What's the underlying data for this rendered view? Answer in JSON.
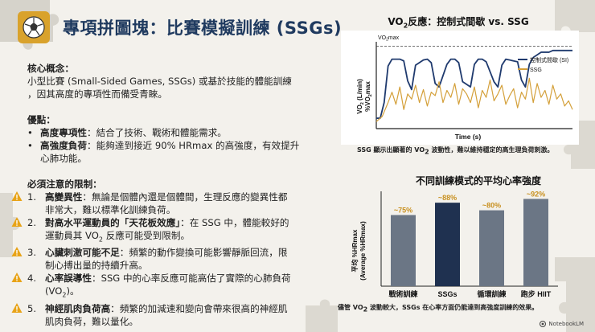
{
  "title": "專項拼圖塊：比賽模擬訓練 (SSGs)",
  "core": {
    "heading": "核心概念：",
    "line1": "小型比賽 (Small-Sided Games, SSGs) 或基於技能的體能訓練",
    "line2": "，因其高度的專項性而備受青睞。"
  },
  "advantages": {
    "heading": "優點：",
    "items": [
      {
        "bold": "高度專項性",
        "text": "：結合了技術、戰術和體能需求。",
        "text2": ""
      },
      {
        "bold": "高強度負荷",
        "text": "：能夠達到接近 90% HRmax 的高強度，有效提升",
        "text2": "心肺功能。"
      }
    ]
  },
  "limits": {
    "heading": "必須注意的限制：",
    "items": [
      {
        "num": "1.",
        "bold": "高變異性",
        "text": "：無論是個體內還是個體間，生理反應的變異性都",
        "text2": "非常大，難以標準化訓練負荷。"
      },
      {
        "num": "2.",
        "bold": "對高水平運動員的「天花板效應」",
        "text": "：在 SSG 中，體能較好的",
        "text2a": "運動員其 VO",
        "text2sub": "2",
        "text2b": " 反應可能受到限制。"
      },
      {
        "num": "3.",
        "bold": "心臟刺激可能不足",
        "text": "：頻繁的動作變換可能影響靜脈回流，限",
        "text2": "制心搏出量的持續升高。"
      },
      {
        "num": "4.",
        "bold": "心率誤導性",
        "text": "：SSG 中的心率反應可能高估了實際的心肺負荷",
        "text2a": "(VO",
        "text2sub": "2",
        "text2b": ")。"
      },
      {
        "num": "5.",
        "bold": "神經肌肉負荷高",
        "text": "：頻繁的加減速和變向會帶來很高的神經肌",
        "text2": "肌肉負荷，難以量化。"
      }
    ]
  },
  "chart_data": [
    {
      "type": "line",
      "title_pre": "VO",
      "title_sub": "2",
      "title_post": "反應：控制式間歇 vs. SSG",
      "xlabel": "Time (s)",
      "ylabel": "VO2 (L/min) %VO2max",
      "ylabel_line1_pre": "VO",
      "ylabel_line1_sub": "2",
      "ylabel_line1_post": " (L/min)",
      "ylabel_line2_pre": "%VO",
      "ylabel_line2_sub": "2",
      "ylabel_line2_post": "max",
      "ref_label_pre": "VO",
      "ref_label_sub": "2",
      "ref_label_post": "max",
      "ylim": [
        0,
        100
      ],
      "ref_line": 95,
      "grid": false,
      "legend": "top-right",
      "series": [
        {
          "name": "控制式間歇 (SI)",
          "color": "#1f3a6e",
          "x": [
            0,
            2,
            4,
            6,
            8,
            12,
            14,
            16,
            18,
            20,
            24,
            26,
            28,
            30,
            32,
            36,
            38,
            40,
            42,
            44,
            48,
            50,
            52,
            54,
            56,
            60,
            62,
            64,
            66,
            68,
            72,
            74,
            76,
            78,
            80,
            84,
            86,
            88,
            90,
            92,
            96,
            100
          ],
          "y": [
            12,
            12,
            30,
            72,
            80,
            80,
            78,
            55,
            45,
            73,
            79,
            80,
            76,
            52,
            48,
            74,
            80,
            80,
            76,
            54,
            48,
            74,
            80,
            80,
            77,
            54,
            48,
            73,
            80,
            79,
            77,
            56,
            48,
            74,
            82,
            88,
            88,
            88,
            90,
            90,
            90,
            90
          ]
        },
        {
          "name": "SSG",
          "color": "#d4a03a",
          "x": [
            0,
            3,
            6,
            8,
            10,
            12,
            14,
            16,
            18,
            20,
            22,
            24,
            26,
            28,
            30,
            32,
            34,
            36,
            38,
            40,
            42,
            44,
            46,
            48,
            50,
            52,
            54,
            56,
            58,
            60,
            62,
            64,
            66,
            68,
            70,
            72,
            74,
            76,
            78,
            80,
            82,
            84,
            86,
            88,
            90,
            92,
            94,
            96,
            98,
            100
          ],
          "y": [
            8,
            14,
            30,
            42,
            28,
            48,
            22,
            40,
            34,
            50,
            30,
            45,
            26,
            42,
            38,
            54,
            30,
            44,
            36,
            52,
            28,
            46,
            40,
            30,
            48,
            24,
            44,
            36,
            56,
            32,
            40,
            50,
            28,
            38,
            46,
            24,
            42,
            34,
            58,
            30,
            52,
            36,
            44,
            28,
            50,
            34,
            40,
            26,
            32,
            22
          ]
        }
      ]
    },
    {
      "type": "bar",
      "title": "不同訓練模式的平均心率強度",
      "ylabel_line1": "平均 %HRmax",
      "ylabel_line2": "(Average %HRmax)",
      "ylim": [
        0,
        100
      ],
      "categories": [
        "戰術訓練",
        "SSGs",
        "循環訓練",
        "跑步 HIIT"
      ],
      "values": [
        75,
        88,
        80,
        92
      ],
      "labels": [
        "~75%",
        "~88%",
        "~80%",
        "~92%"
      ],
      "colors": [
        "#6b7685",
        "#1f3150",
        "#6b7685",
        "#6b7685"
      ],
      "label_color": "#c8901f"
    }
  ],
  "chart1_caption": {
    "pre": "SSG 顯示出顯著的 VO",
    "sub": "2",
    "post": " 波動性，難以維持穩定的高生理負荷刺激。"
  },
  "chart2_caption": {
    "pre": "儘管 VO",
    "sub": "2",
    "post": " 波動較大，SSGs 在心率方面仍能達到高強度訓練的效果。"
  },
  "brand": "NotebookLM",
  "colors": {
    "title": "#1f3a5f",
    "warn": "#e8a317",
    "bg": "#f3f1ec",
    "puzzle": "#d6d3cb"
  }
}
